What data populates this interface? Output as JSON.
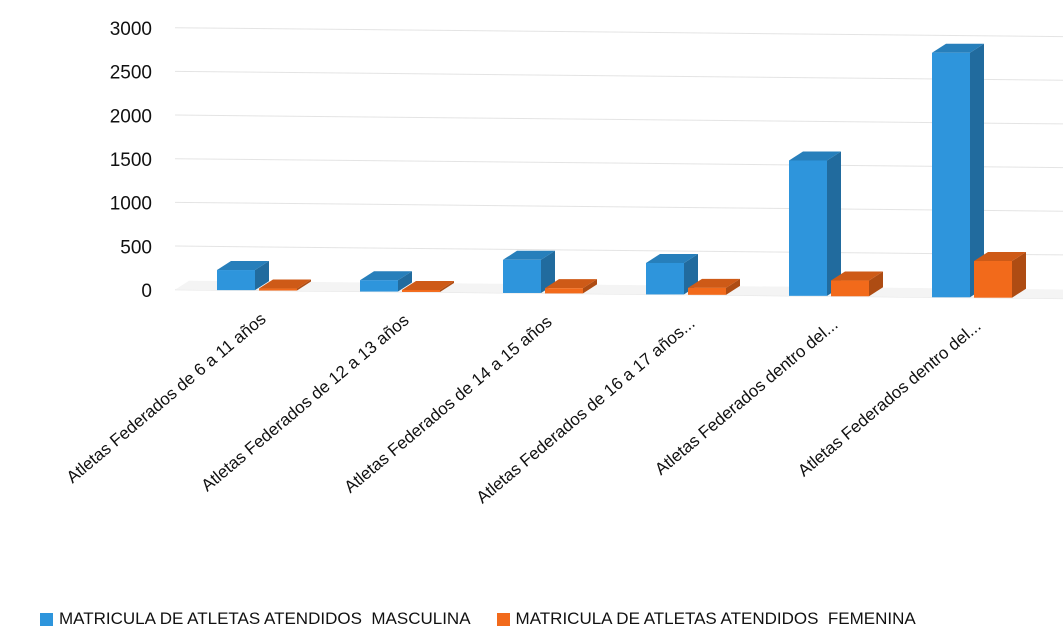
{
  "chart_data": {
    "type": "bar",
    "title": "",
    "xlabel": "",
    "ylabel": "",
    "ylim": [
      0,
      3000
    ],
    "yticks": [
      0,
      500,
      1000,
      1500,
      2000,
      2500,
      3000
    ],
    "grid": true,
    "legend_position": "bottom",
    "categories": [
      "Atletas Federados de 6 a 11 años",
      "Atletas Federados de 12 a 13 años",
      "Atletas Federados de 14 a 15 años",
      "Atletas Federados de 16 a 17 años...",
      "Atletas Federados dentro del...",
      "Atletas Federados dentro del..."
    ],
    "series": [
      {
        "name": "MATRICULA DE ATLETAS ATENDIDOS  MASCULINA",
        "color": "#2e95dc",
        "values": [
          230,
          130,
          380,
          360,
          1550,
          2800
        ]
      },
      {
        "name": "MATRICULA DE ATLETAS ATENDIDOS  FEMENINA",
        "color": "#f26a1b",
        "values": [
          10,
          10,
          60,
          80,
          180,
          420
        ]
      }
    ]
  }
}
